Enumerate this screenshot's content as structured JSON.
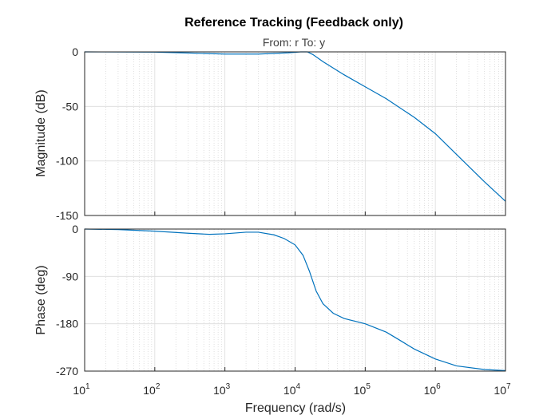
{
  "figure": {
    "title": "Reference Tracking (Feedback only)",
    "subtitle": "From: r  To: y"
  },
  "chart_data": {
    "type": "line",
    "xscale": "log",
    "xlabel": "Frequency  (rad/s)",
    "xlim": [
      10,
      10000000
    ],
    "xticks": [
      {
        "base": "10",
        "exp": "1"
      },
      {
        "base": "10",
        "exp": "2"
      },
      {
        "base": "10",
        "exp": "3"
      },
      {
        "base": "10",
        "exp": "4"
      },
      {
        "base": "10",
        "exp": "5"
      },
      {
        "base": "10",
        "exp": "6"
      },
      {
        "base": "10",
        "exp": "7"
      }
    ],
    "grid": true,
    "line_color": "#0072bd",
    "panels": [
      {
        "name": "magnitude",
        "ylabel": "Magnitude (dB)",
        "ylim": [
          -150,
          0
        ],
        "yticks": [
          "0",
          "-50",
          "-100",
          "-150"
        ],
        "ytick_values": [
          0,
          -50,
          -100,
          -150
        ],
        "series": {
          "x": [
            10,
            100,
            300,
            1000,
            3000,
            8000,
            12000,
            15000,
            18000,
            25000,
            50000,
            100000,
            200000,
            500000,
            1000000,
            2000000,
            5000000,
            10000000
          ],
          "y": [
            0,
            -0.2,
            -1.0,
            -2.0,
            -2.0,
            -0.8,
            0,
            0,
            -2.5,
            -9,
            -21,
            -32,
            -43,
            -60,
            -75,
            -94,
            -119,
            -137
          ]
        }
      },
      {
        "name": "phase",
        "ylabel": "Phase (deg)",
        "ylim": [
          -270,
          0
        ],
        "yticks": [
          "0",
          "-90",
          "-180",
          "-270"
        ],
        "ytick_values": [
          0,
          -90,
          -180,
          -270
        ],
        "series": {
          "x": [
            10,
            30,
            100,
            300,
            600,
            1000,
            2000,
            3000,
            5000,
            7000,
            10000,
            13000,
            16000,
            20000,
            25000,
            35000,
            50000,
            100000,
            200000,
            300000,
            500000,
            1000000,
            2000000,
            5000000,
            10000000
          ],
          "y": [
            0,
            -1,
            -4,
            -8,
            -10,
            -9,
            -6,
            -6,
            -11,
            -18,
            -30,
            -50,
            -80,
            -118,
            -142,
            -160,
            -170,
            -180,
            -196,
            -210,
            -228,
            -247,
            -260,
            -267,
            -269
          ]
        }
      }
    ]
  }
}
